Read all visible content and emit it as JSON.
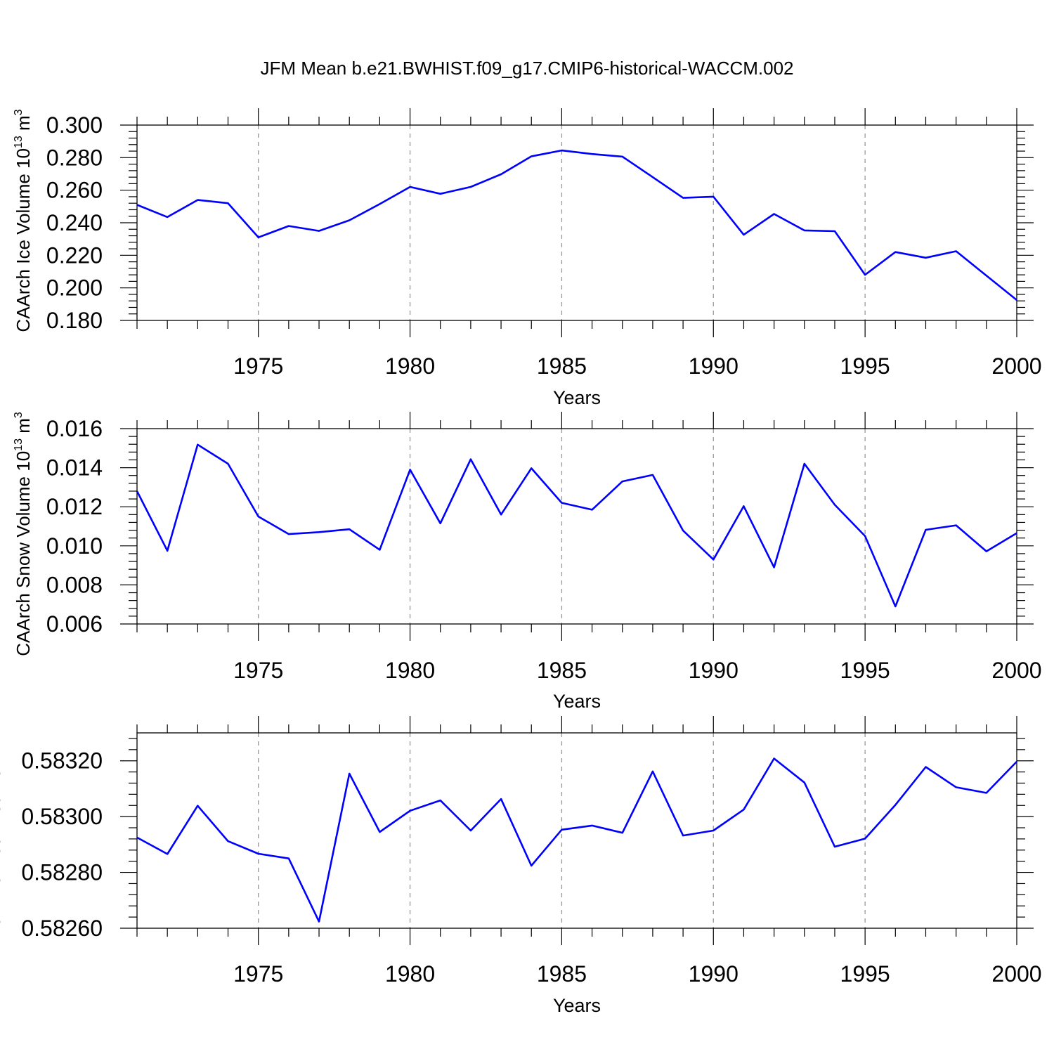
{
  "figure_title": "JFM Mean b.e21.BWHIST.f09_g17.CMIP6-historical-WACCM.002",
  "line_color": "#0000ff",
  "chart_data": [
    {
      "type": "line",
      "title": "JFM Mean b.e21.BWHIST.f09_g17.CMIP6-historical-WACCM.002",
      "xlabel": "Years",
      "ylabel": "CAArch Ice Volume",
      "yunit_base": "10",
      "yunit_exp": "13",
      "yunit_rest": "m",
      "yunit_rest_exp": "3",
      "xlim": [
        1971,
        2000
      ],
      "ylim": [
        0.18,
        0.3
      ],
      "xticks": [
        1975,
        1980,
        1985,
        1990,
        1995,
        2000
      ],
      "xtick_labels": [
        "1975",
        "1980",
        "1985",
        "1990",
        "1995",
        "2000"
      ],
      "yticks": [
        0.18,
        0.2,
        0.22,
        0.24,
        0.26,
        0.28,
        0.3
      ],
      "ytick_labels": [
        "0.180",
        "0.200",
        "0.220",
        "0.240",
        "0.260",
        "0.280",
        "0.300"
      ],
      "grid": "vertical dashed at major x ticks",
      "series": [
        {
          "name": "CAArch Ice Volume",
          "x": [
            1971,
            1972,
            1973,
            1974,
            1975,
            1976,
            1977,
            1978,
            1979,
            1980,
            1981,
            1982,
            1983,
            1984,
            1985,
            1986,
            1987,
            1988,
            1989,
            1990,
            1991,
            1992,
            1993,
            1994,
            1995,
            1996,
            1997,
            1998,
            1999,
            2000
          ],
          "y": [
            0.251,
            0.2435,
            0.254,
            0.252,
            0.231,
            0.238,
            0.235,
            0.2415,
            0.2515,
            0.262,
            0.2578,
            0.262,
            0.2698,
            0.2808,
            0.2844,
            0.2822,
            0.2806,
            0.268,
            0.2553,
            0.256,
            0.2326,
            0.2454,
            0.2353,
            0.2348,
            0.208,
            0.222,
            0.2185,
            0.2225,
            0.2075,
            0.1925
          ]
        }
      ]
    },
    {
      "type": "line",
      "xlabel": "Years",
      "ylabel": "CAArch Snow Volume",
      "yunit_base": "10",
      "yunit_exp": "13",
      "yunit_rest": "m",
      "yunit_rest_exp": "3",
      "xlim": [
        1971,
        2000
      ],
      "ylim": [
        0.006,
        0.016
      ],
      "xticks": [
        1975,
        1980,
        1985,
        1990,
        1995,
        2000
      ],
      "xtick_labels": [
        "1975",
        "1980",
        "1985",
        "1990",
        "1995",
        "2000"
      ],
      "yticks": [
        0.006,
        0.008,
        0.01,
        0.012,
        0.014,
        0.016
      ],
      "ytick_labels": [
        "0.006",
        "0.008",
        "0.010",
        "0.012",
        "0.014",
        "0.016"
      ],
      "grid": "vertical dashed at major x ticks",
      "series": [
        {
          "name": "CAArch Snow Volume",
          "x": [
            1971,
            1972,
            1973,
            1974,
            1975,
            1976,
            1977,
            1978,
            1979,
            1980,
            1981,
            1982,
            1983,
            1984,
            1985,
            1986,
            1987,
            1988,
            1989,
            1990,
            1991,
            1992,
            1993,
            1994,
            1995,
            1996,
            1997,
            1998,
            1999,
            2000
          ],
          "y": [
            0.0128,
            0.00975,
            0.01518,
            0.0142,
            0.0115,
            0.0106,
            0.0107,
            0.01085,
            0.0098,
            0.0139,
            0.01115,
            0.01443,
            0.0116,
            0.01397,
            0.0122,
            0.01185,
            0.0133,
            0.01363,
            0.01078,
            0.0093,
            0.01203,
            0.0089,
            0.0142,
            0.0121,
            0.0105,
            0.0069,
            0.01082,
            0.01105,
            0.00972,
            0.01065
          ]
        }
      ]
    },
    {
      "type": "line",
      "xlabel": "Years",
      "ylabel": "CAArch Ice Area",
      "yunit_base": "10",
      "yunit_exp": "13",
      "yunit_rest": "m",
      "yunit_rest_exp": "2",
      "xlim": [
        1971,
        2000
      ],
      "ylim": [
        0.5826,
        0.5833
      ],
      "xticks": [
        1975,
        1980,
        1985,
        1990,
        1995,
        2000
      ],
      "xtick_labels": [
        "1975",
        "1980",
        "1985",
        "1990",
        "1995",
        "2000"
      ],
      "yticks": [
        0.5826,
        0.5828,
        0.583,
        0.5832
      ],
      "ytick_labels": [
        "0.58260",
        "0.58280",
        "0.58300",
        "0.58320"
      ],
      "grid": "vertical dashed at major x ticks",
      "series": [
        {
          "name": "CAArch Ice Area",
          "x": [
            1971,
            1972,
            1973,
            1974,
            1975,
            1976,
            1977,
            1978,
            1979,
            1980,
            1981,
            1982,
            1983,
            1984,
            1985,
            1986,
            1987,
            1988,
            1989,
            1990,
            1991,
            1992,
            1993,
            1994,
            1995,
            1996,
            1997,
            1998,
            1999,
            2000
          ],
          "y": [
            0.582925,
            0.582866,
            0.583039,
            0.582912,
            0.582867,
            0.58285,
            0.582624,
            0.583154,
            0.582945,
            0.583021,
            0.583058,
            0.58295,
            0.583063,
            0.582824,
            0.582953,
            0.582968,
            0.582942,
            0.583162,
            0.582932,
            0.58295,
            0.583025,
            0.583208,
            0.583122,
            0.582892,
            0.582921,
            0.583042,
            0.583178,
            0.583105,
            0.583085,
            0.583197
          ]
        }
      ]
    }
  ]
}
